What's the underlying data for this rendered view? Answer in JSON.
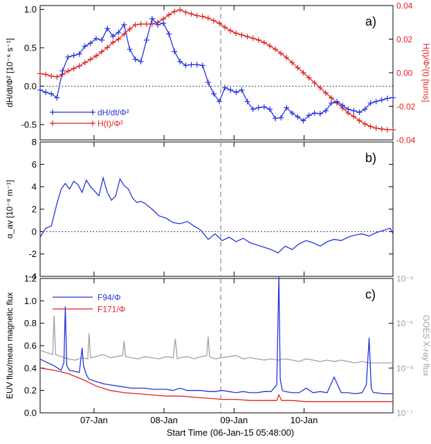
{
  "chart_data": [
    {
      "panel_label": "a)",
      "type": "line",
      "ylabel": "dH/dt/Φ² [10⁻⁶ s⁻¹]",
      "y2label": "H(t)/Φ²(t) [turns]",
      "ylim": [
        -0.7,
        1.05
      ],
      "y_ticks": [
        "1.0",
        "0.5",
        "0.0",
        "-0.5"
      ],
      "y2lim": [
        -0.04,
        0.04
      ],
      "y2_ticks": [
        "0.04",
        "0.02",
        "0.00",
        "-0.02",
        "-0.04"
      ],
      "reference_line_y": 0,
      "legend": "left",
      "series": [
        {
          "name": "dH/dt/Φ²",
          "color": "#2233dd",
          "axis": "left",
          "marker": "plus",
          "x": [
            0.0,
            0.08,
            0.16,
            0.24,
            0.32,
            0.4,
            0.48,
            0.56,
            0.64,
            0.72,
            0.8,
            0.88,
            0.96,
            1.04,
            1.12,
            1.2,
            1.28,
            1.36,
            1.44,
            1.52,
            1.6,
            1.68,
            1.76,
            1.84,
            1.92,
            2.0,
            2.08,
            2.16,
            2.24,
            2.32,
            2.4,
            2.48,
            2.56,
            2.64,
            2.72,
            2.8,
            2.88,
            2.96,
            3.04,
            3.12,
            3.2,
            3.28,
            3.36,
            3.44,
            3.52,
            3.6,
            3.68,
            3.76,
            3.84,
            3.92,
            4.0,
            4.08,
            4.16,
            4.24,
            4.32,
            4.4,
            4.48,
            4.56,
            4.64,
            4.72,
            4.8,
            4.88,
            4.96,
            5.04
          ],
          "y": [
            -0.05,
            -0.08,
            -0.1,
            -0.15,
            0.2,
            0.38,
            0.4,
            0.42,
            0.52,
            0.56,
            0.62,
            0.6,
            0.75,
            0.65,
            0.7,
            0.8,
            0.48,
            0.35,
            0.32,
            0.6,
            0.88,
            0.8,
            0.82,
            0.68,
            0.45,
            0.32,
            0.27,
            0.28,
            0.28,
            0.27,
            0.05,
            -0.1,
            -0.2,
            -0.02,
            -0.05,
            -0.08,
            -0.05,
            -0.2,
            -0.3,
            -0.28,
            -0.27,
            -0.3,
            -0.42,
            -0.41,
            -0.28,
            -0.35,
            -0.4,
            -0.45,
            -0.38,
            -0.35,
            -0.36,
            -0.32,
            -0.22,
            -0.2,
            -0.25,
            -0.3,
            -0.32,
            -0.34,
            -0.3,
            -0.22,
            -0.2,
            -0.18,
            -0.16,
            -0.15
          ]
        },
        {
          "name": "H(t)/Φ²",
          "color": "#dd2222",
          "axis": "right",
          "marker": "plus",
          "x": [
            0.0,
            0.08,
            0.16,
            0.24,
            0.32,
            0.4,
            0.48,
            0.56,
            0.64,
            0.72,
            0.8,
            0.88,
            0.96,
            1.04,
            1.12,
            1.2,
            1.28,
            1.36,
            1.44,
            1.52,
            1.6,
            1.68,
            1.76,
            1.84,
            1.92,
            2.0,
            2.08,
            2.16,
            2.24,
            2.32,
            2.4,
            2.48,
            2.56,
            2.64,
            2.72,
            2.8,
            2.88,
            2.96,
            3.04,
            3.12,
            3.2,
            3.28,
            3.36,
            3.44,
            3.52,
            3.6,
            3.68,
            3.76,
            3.84,
            3.92,
            4.0,
            4.08,
            4.16,
            4.24,
            4.32,
            4.4,
            4.48,
            4.56,
            4.64,
            4.72,
            4.8,
            4.88,
            4.96,
            5.04
          ],
          "y": [
            -0.0005,
            -0.001,
            -0.002,
            -0.0025,
            -0.001,
            0.001,
            0.0025,
            0.004,
            0.006,
            0.008,
            0.01,
            0.0125,
            0.015,
            0.018,
            0.02,
            0.023,
            0.026,
            0.0285,
            0.029,
            0.029,
            0.029,
            0.03,
            0.032,
            0.0345,
            0.0365,
            0.0375,
            0.036,
            0.035,
            0.034,
            0.0335,
            0.0325,
            0.031,
            0.0295,
            0.027,
            0.025,
            0.0235,
            0.0225,
            0.0215,
            0.0205,
            0.0195,
            0.018,
            0.016,
            0.014,
            0.0115,
            0.009,
            0.006,
            0.003,
            0.0,
            -0.003,
            -0.006,
            -0.009,
            -0.012,
            -0.015,
            -0.018,
            -0.021,
            -0.024,
            -0.026,
            -0.0285,
            -0.0305,
            -0.032,
            -0.033,
            -0.0335,
            -0.034,
            -0.034
          ]
        }
      ]
    },
    {
      "panel_label": "b)",
      "type": "line",
      "ylabel": "α_av [10⁻⁸ m⁻¹]",
      "ylim": [
        -4,
        8
      ],
      "y_ticks": [
        "8",
        "6",
        "4",
        "2",
        "0",
        "-2",
        "-4"
      ],
      "reference_line_y": 0,
      "series": [
        {
          "name": "",
          "color": "#2233dd",
          "axis": "left",
          "x": [
            0.0,
            0.08,
            0.16,
            0.24,
            0.3,
            0.36,
            0.42,
            0.48,
            0.54,
            0.6,
            0.66,
            0.72,
            0.78,
            0.84,
            0.9,
            0.96,
            1.02,
            1.08,
            1.14,
            1.2,
            1.26,
            1.32,
            1.38,
            1.44,
            1.5,
            1.6,
            1.7,
            1.8,
            1.9,
            2.0,
            2.1,
            2.2,
            2.3,
            2.4,
            2.5,
            2.6,
            2.7,
            2.8,
            2.9,
            3.0,
            3.1,
            3.2,
            3.3,
            3.4,
            3.5,
            3.6,
            3.7,
            3.8,
            3.9,
            4.0,
            4.1,
            4.2,
            4.3,
            4.4,
            4.5,
            4.6,
            4.7,
            4.8,
            4.9,
            5.0,
            5.04
          ],
          "y": [
            -0.5,
            0.3,
            0.5,
            2.5,
            3.8,
            4.3,
            3.8,
            4.5,
            4.2,
            3.5,
            4.6,
            4.0,
            3.6,
            3.2,
            4.8,
            3.5,
            2.8,
            3.2,
            4.7,
            4.1,
            3.8,
            3.0,
            2.6,
            2.7,
            2.5,
            2.0,
            1.4,
            1.2,
            0.8,
            0.7,
            0.9,
            0.5,
            0.1,
            -0.7,
            -0.2,
            -0.8,
            -0.5,
            -0.9,
            -0.6,
            -1.0,
            -1.2,
            -1.4,
            -1.6,
            -1.9,
            -1.3,
            -1.6,
            -1.1,
            -0.8,
            -1.0,
            -1.3,
            -0.9,
            -0.7,
            -0.8,
            -0.5,
            -0.3,
            -0.2,
            -0.4,
            -0.1,
            0.1,
            0.3,
            -0.2
          ]
        }
      ]
    },
    {
      "panel_label": "c)",
      "type": "line",
      "ylabel": "EUV flux/mean magnetic flux",
      "y2label": "GOES X-ray flux",
      "ylim": [
        0,
        1.2
      ],
      "y_ticks": [
        "1.2",
        "1.0",
        "0.8",
        "0.6",
        "0.4",
        "0.2",
        "0.0"
      ],
      "y2_scale": "log",
      "y2lim": [
        1e-07,
        0.0001
      ],
      "y2_ticks": [
        "10⁻⁴",
        "10⁻⁵",
        "10⁻⁶",
        "10⁻⁷"
      ],
      "xlabel": "Start Time (06-Jan-15 05:48:00)",
      "x_ticks": [
        {
          "x": 0.77,
          "label": "07-Jan"
        },
        {
          "x": 1.77,
          "label": "08-Jan"
        },
        {
          "x": 2.77,
          "label": "09-Jan"
        },
        {
          "x": 3.77,
          "label": "10-Jan"
        }
      ],
      "xlim": [
        0,
        5.04
      ],
      "vertical_line_x": 2.58,
      "legend": "top-left",
      "series": [
        {
          "name": "F94/Φ",
          "color": "#2233dd",
          "axis": "left",
          "x": [
            0.0,
            0.1,
            0.2,
            0.3,
            0.34,
            0.36,
            0.38,
            0.42,
            0.5,
            0.56,
            0.6,
            0.62,
            0.66,
            0.7,
            0.8,
            0.9,
            1.0,
            1.1,
            1.2,
            1.3,
            1.4,
            1.5,
            1.6,
            1.7,
            1.8,
            1.9,
            2.0,
            2.1,
            2.2,
            2.3,
            2.4,
            2.5,
            2.6,
            2.7,
            2.8,
            2.9,
            3.0,
            3.1,
            3.2,
            3.3,
            3.38,
            3.41,
            3.43,
            3.46,
            3.5,
            3.6,
            3.7,
            3.8,
            3.9,
            4.0,
            4.1,
            4.2,
            4.3,
            4.4,
            4.5,
            4.6,
            4.66,
            4.7,
            4.73,
            4.76,
            4.8,
            4.9,
            5.0,
            5.04
          ],
          "y": [
            0.48,
            0.45,
            0.42,
            0.38,
            0.45,
            0.95,
            0.42,
            0.38,
            0.37,
            0.36,
            0.58,
            0.42,
            0.34,
            0.3,
            0.28,
            0.26,
            0.25,
            0.24,
            0.23,
            0.22,
            0.22,
            0.22,
            0.21,
            0.21,
            0.21,
            0.2,
            0.22,
            0.2,
            0.2,
            0.2,
            0.19,
            0.19,
            0.2,
            0.19,
            0.18,
            0.19,
            0.18,
            0.18,
            0.19,
            0.19,
            0.25,
            1.22,
            0.3,
            0.2,
            0.19,
            0.18,
            0.18,
            0.22,
            0.18,
            0.19,
            0.18,
            0.32,
            0.18,
            0.18,
            0.17,
            0.18,
            0.25,
            0.67,
            0.22,
            0.18,
            0.18,
            0.17,
            0.17,
            0.17
          ]
        },
        {
          "name": "F171/Φ",
          "color": "#dd2222",
          "axis": "left",
          "x": [
            0.0,
            0.2,
            0.4,
            0.6,
            0.8,
            1.0,
            1.2,
            1.4,
            1.6,
            1.8,
            2.0,
            2.2,
            2.4,
            2.6,
            2.8,
            3.0,
            3.2,
            3.38,
            3.41,
            3.45,
            3.6,
            3.8,
            4.0,
            4.2,
            4.4,
            4.6,
            4.8,
            5.04
          ],
          "y": [
            0.4,
            0.38,
            0.35,
            0.3,
            0.24,
            0.2,
            0.18,
            0.17,
            0.16,
            0.15,
            0.15,
            0.14,
            0.13,
            0.12,
            0.12,
            0.11,
            0.11,
            0.11,
            0.16,
            0.11,
            0.11,
            0.1,
            0.1,
            0.1,
            0.1,
            0.1,
            0.1,
            0.1
          ]
        },
        {
          "name": "GOES X-ray flux",
          "color": "#a0a0a0",
          "axis": "right",
          "x": [
            0.0,
            0.1,
            0.18,
            0.2,
            0.22,
            0.3,
            0.4,
            0.5,
            0.6,
            0.68,
            0.7,
            0.72,
            0.8,
            0.9,
            1.0,
            1.1,
            1.18,
            1.2,
            1.22,
            1.3,
            1.4,
            1.5,
            1.6,
            1.7,
            1.8,
            1.9,
            1.93,
            1.96,
            2.0,
            2.1,
            2.2,
            2.3,
            2.38,
            2.4,
            2.42,
            2.5,
            2.6,
            2.7,
            2.8,
            2.9,
            3.0,
            3.1,
            3.2,
            3.3,
            3.4,
            3.5,
            3.6,
            3.7,
            3.8,
            3.9,
            4.0,
            4.1,
            4.2,
            4.3,
            4.4,
            4.5,
            4.6,
            4.7,
            4.8,
            4.9,
            5.04
          ],
          "y": [
            2.5e-06,
            2.2e-06,
            2e-06,
            1.5e-05,
            2e-06,
            1.8e-06,
            1.6e-06,
            1.5e-06,
            1.7e-06,
            1.6e-06,
            6e-06,
            1.7e-06,
            1.8e-06,
            2e-06,
            1.7e-06,
            1.8e-06,
            1.9e-06,
            4e-06,
            1.8e-06,
            1.7e-06,
            1.6e-06,
            1.8e-06,
            1.7e-06,
            1.6e-06,
            1.8e-06,
            1.7e-06,
            4.5e-06,
            1.6e-06,
            1.7e-06,
            1.8e-06,
            1.6e-06,
            1.8e-06,
            1.9e-06,
            5e-06,
            1.8e-06,
            1.6e-06,
            1.7e-06,
            1.8e-06,
            1.9e-06,
            1.6e-06,
            1.7e-06,
            1.6e-06,
            1.5e-06,
            1.6e-06,
            1.5e-06,
            1.6e-06,
            1.5e-06,
            1.4e-06,
            1.6e-06,
            1.5e-06,
            1.4e-06,
            1.5e-06,
            1.4e-06,
            1.5e-06,
            1.4e-06,
            1.3e-06,
            1.4e-06,
            1.3e-06,
            1.3e-06,
            1.3e-06,
            1.3e-06
          ]
        }
      ]
    }
  ]
}
